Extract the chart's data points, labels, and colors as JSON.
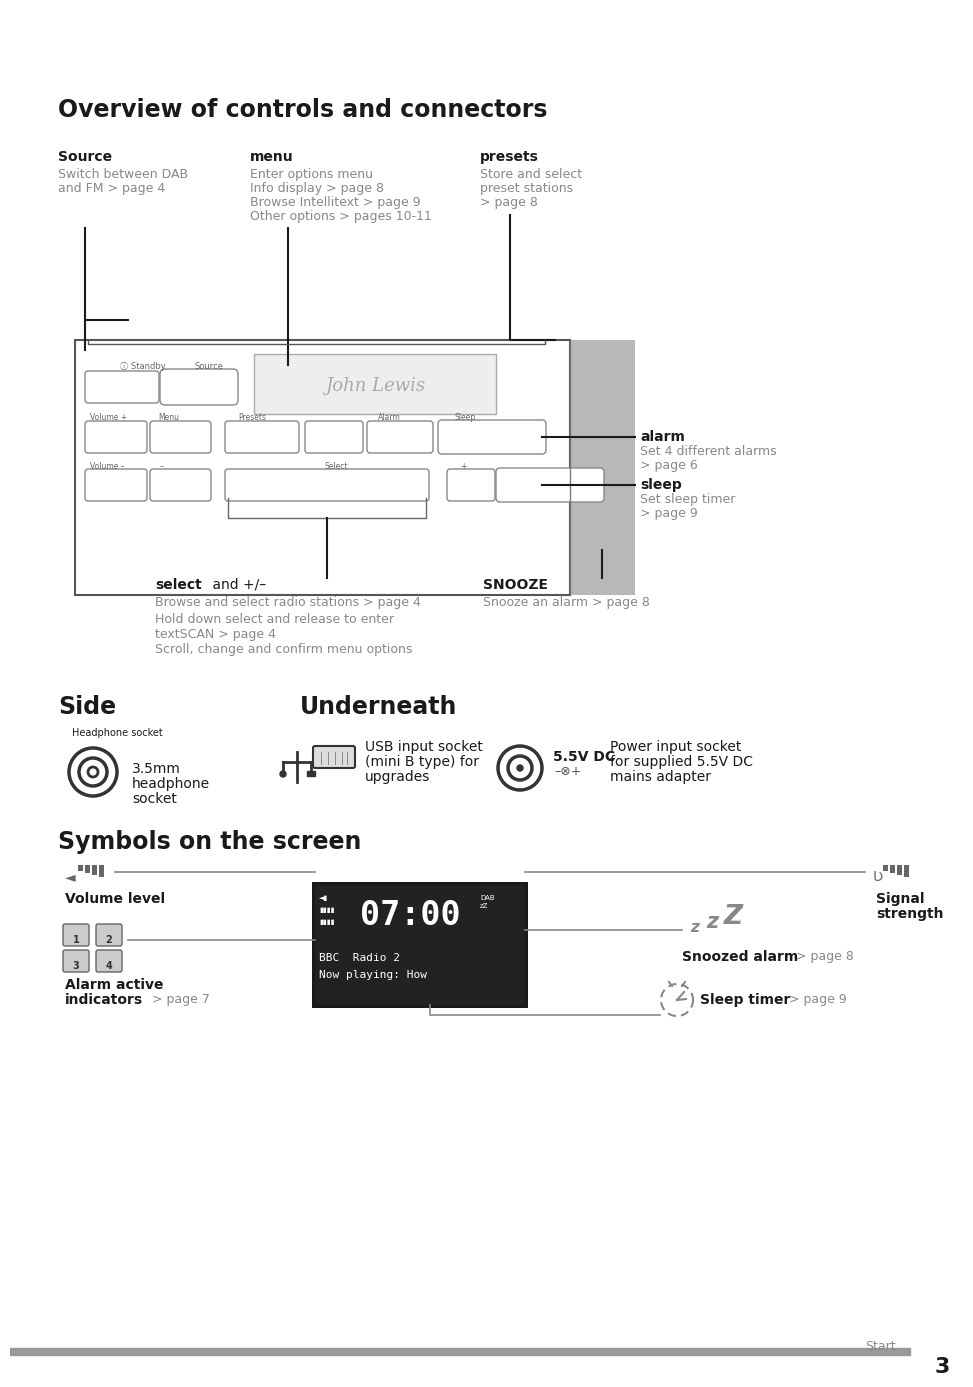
{
  "bg_color": "#ffffff",
  "title": "Overview of controls and connectors",
  "footer_bar_color": "#999999",
  "page_num": "3",
  "gray_text": "#888888",
  "dark_text": "#1a1a1a",
  "mid_gray": "#aaaaaa"
}
